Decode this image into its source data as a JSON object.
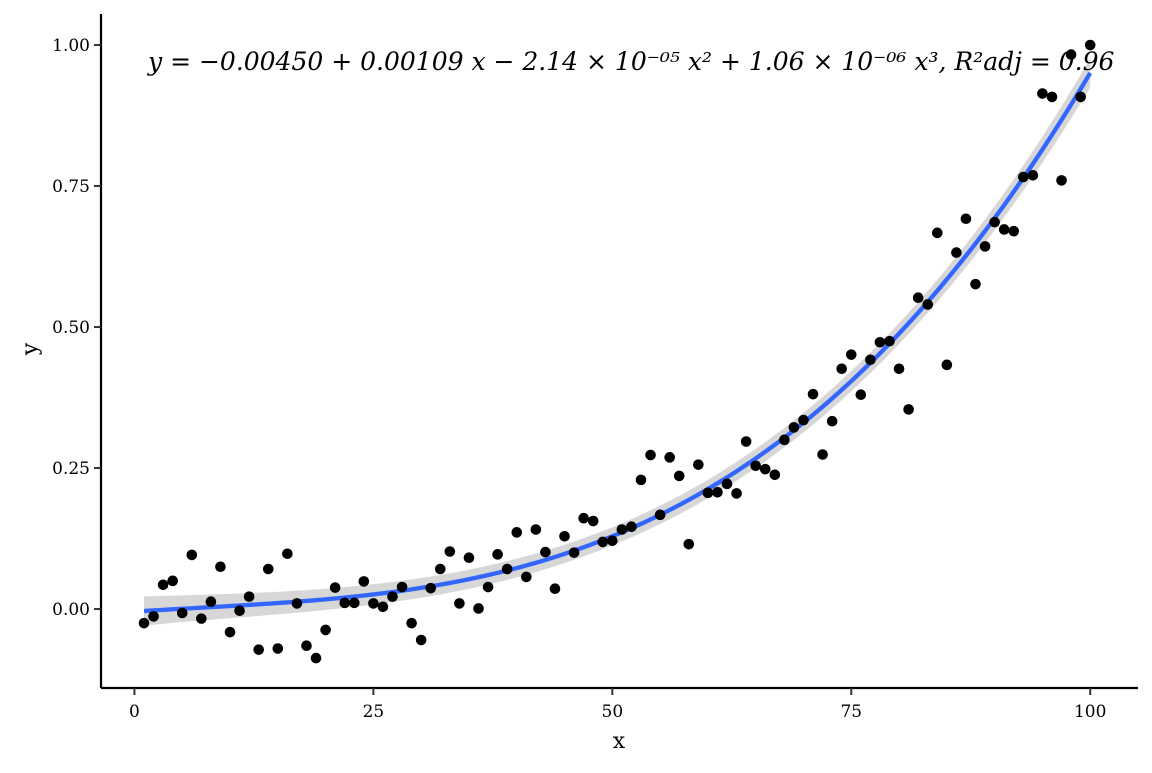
{
  "chart_data": {
    "type": "scatter",
    "xlabel": "x",
    "ylabel": "y",
    "xlim": [
      -3.5,
      105
    ],
    "ylim": [
      -0.14,
      1.055
    ],
    "x_ticks": [
      0,
      25,
      50,
      75,
      100
    ],
    "x_tick_labels": [
      "0",
      "25",
      "50",
      "75",
      "100"
    ],
    "y_ticks": [
      0,
      0.25,
      0.5,
      0.75,
      1.0
    ],
    "y_tick_labels": [
      "0.00",
      "0.25",
      "0.50",
      "0.75",
      "1.00"
    ],
    "grid": false,
    "annotation": "y = −0.00450 + 0.00109 x − 2.14 × 10⁻⁰⁵ x² + 1.06 × 10⁻⁰⁶ x³, R²adj = 0.96",
    "fit": {
      "type": "polynomial",
      "degree": 3,
      "coefficients": [
        -0.0045,
        0.00109,
        -2.14e-05,
        1.06e-06
      ],
      "r2_adj": 0.96,
      "x_range": [
        1,
        100
      ],
      "color": "#3366FF",
      "confidence_band": true,
      "band_color": "#d3d3d3"
    },
    "points": {
      "color": "#000000",
      "x": [
        1,
        2,
        3,
        4,
        5,
        6,
        7,
        8,
        9,
        10,
        11,
        12,
        13,
        14,
        15,
        16,
        17,
        18,
        19,
        20,
        21,
        22,
        23,
        24,
        25,
        26,
        27,
        28,
        29,
        30,
        31,
        32,
        33,
        34,
        35,
        36,
        37,
        38,
        39,
        40,
        41,
        42,
        43,
        44,
        45,
        46,
        47,
        48,
        49,
        50,
        51,
        52,
        53,
        54,
        55,
        56,
        57,
        58,
        59,
        60,
        61,
        62,
        63,
        64,
        65,
        66,
        67,
        68,
        69,
        70,
        71,
        72,
        73,
        74,
        75,
        76,
        77,
        78,
        79,
        80,
        81,
        82,
        83,
        84,
        85,
        86,
        87,
        88,
        89,
        90,
        91,
        92,
        93,
        94,
        95,
        96,
        97,
        98,
        99,
        100
      ],
      "y": [
        -0.025,
        -0.013,
        0.043,
        0.05,
        -0.007,
        0.096,
        -0.017,
        0.013,
        0.075,
        -0.041,
        -0.003,
        0.022,
        -0.072,
        0.071,
        -0.07,
        0.098,
        0.01,
        -0.065,
        -0.087,
        -0.037,
        0.038,
        0.011,
        0.011,
        0.049,
        0.01,
        0.004,
        0.022,
        0.039,
        -0.025,
        -0.055,
        0.037,
        0.071,
        0.102,
        0.01,
        0.091,
        0.001,
        0.039,
        0.097,
        0.071,
        0.136,
        0.057,
        0.141,
        0.101,
        0.036,
        0.129,
        0.1,
        0.161,
        0.156,
        0.119,
        0.121,
        0.141,
        0.146,
        0.229,
        0.273,
        0.167,
        0.269,
        0.236,
        0.115,
        0.256,
        0.206,
        0.207,
        0.222,
        0.205,
        0.297,
        0.254,
        0.248,
        0.238,
        0.3,
        0.322,
        0.335,
        0.381,
        0.274,
        0.333,
        0.426,
        0.451,
        0.38,
        0.442,
        0.473,
        0.475,
        0.426,
        0.354,
        0.552,
        0.54,
        0.667,
        0.433,
        0.632,
        0.692,
        0.576,
        0.643,
        0.686,
        0.673,
        0.67,
        0.766,
        0.769,
        0.914,
        0.908,
        0.76,
        0.983,
        0.908,
        1.0
      ]
    }
  }
}
